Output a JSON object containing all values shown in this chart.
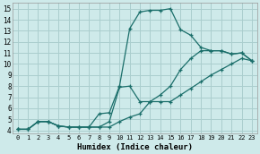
{
  "xlabel": "Humidex (Indice chaleur)",
  "xlim": [
    -0.5,
    23.5
  ],
  "ylim": [
    3.7,
    15.5
  ],
  "xticks": [
    0,
    1,
    2,
    3,
    4,
    5,
    6,
    7,
    8,
    9,
    10,
    11,
    12,
    13,
    14,
    15,
    16,
    17,
    18,
    19,
    20,
    21,
    22,
    23
  ],
  "yticks": [
    4,
    5,
    6,
    7,
    8,
    9,
    10,
    11,
    12,
    13,
    14,
    15
  ],
  "bg_color": "#ceeaea",
  "grid_color": "#aacece",
  "line_color": "#1a6e6a",
  "line1_x": [
    0,
    1,
    2,
    3,
    4,
    5,
    6,
    7,
    8,
    9,
    10,
    11,
    12,
    13,
    14,
    15,
    16,
    17,
    18,
    19,
    20,
    21,
    22,
    23
  ],
  "line1_y": [
    4.1,
    4.1,
    4.8,
    4.8,
    4.4,
    4.3,
    4.3,
    4.3,
    4.3,
    4.3,
    4.8,
    5.2,
    5.5,
    6.6,
    6.6,
    6.6,
    7.2,
    7.8,
    8.4,
    9.0,
    9.5,
    10.0,
    10.5,
    10.3
  ],
  "line2_x": [
    0,
    1,
    2,
    3,
    4,
    5,
    6,
    7,
    8,
    9,
    10,
    11,
    12,
    13,
    14,
    15,
    16,
    17,
    18,
    19,
    20,
    21,
    22,
    23
  ],
  "line2_y": [
    4.1,
    4.1,
    4.8,
    4.8,
    4.4,
    4.3,
    4.3,
    4.3,
    4.3,
    4.8,
    7.9,
    8.0,
    6.6,
    6.6,
    7.2,
    8.0,
    9.5,
    10.5,
    11.2,
    11.2,
    11.2,
    10.9,
    11.0,
    10.3
  ],
  "line3_x": [
    0,
    1,
    2,
    3,
    4,
    5,
    6,
    7,
    8,
    9,
    10,
    11,
    12,
    13,
    14,
    15,
    16,
    17,
    18,
    19,
    20,
    21,
    22,
    23
  ],
  "line3_y": [
    4.1,
    4.1,
    4.8,
    4.8,
    4.4,
    4.3,
    4.3,
    4.3,
    5.5,
    5.6,
    8.0,
    13.2,
    14.7,
    14.85,
    14.85,
    15.0,
    13.1,
    12.6,
    11.5,
    11.2,
    11.2,
    10.9,
    11.0,
    10.3
  ]
}
